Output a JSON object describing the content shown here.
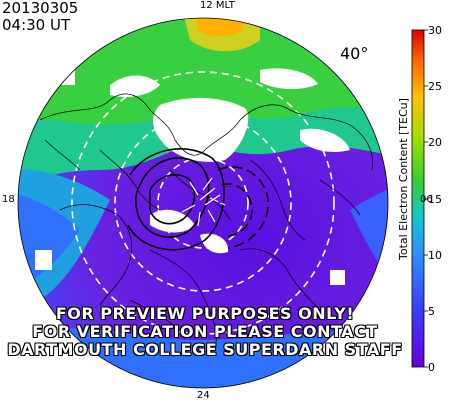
{
  "header": {
    "date": "20130305",
    "time": "04:30 UT"
  },
  "map": {
    "mlt_labels": {
      "top": "12 MLT",
      "left": "18",
      "right": "06",
      "bottom": "24"
    },
    "latitude_label": "40°",
    "colors": {
      "low": "#6a00d8",
      "mid_low": "#2f72ff",
      "mid": "#14c8c8",
      "mid_high": "#30d030",
      "high": "#ffc000",
      "max": "#e00000"
    }
  },
  "watermark": {
    "line1": "FOR PREVIEW PURPOSES ONLY!",
    "line2": "FOR VERIFICATION PLEASE CONTACT",
    "line3": "DARTMOUTH COLLEGE SUPERDARN STAFF"
  },
  "colorbar": {
    "title": "Total Electron Content [TECu]",
    "ticks": [
      "0",
      "5",
      "10",
      "15",
      "20",
      "25",
      "30"
    ],
    "range": [
      0,
      30
    ]
  }
}
